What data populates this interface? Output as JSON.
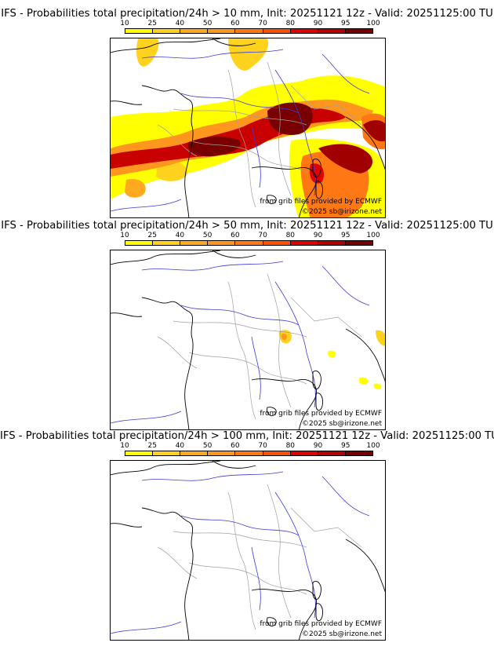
{
  "colorbar": {
    "ticks": [
      "10",
      "25",
      "40",
      "50",
      "60",
      "70",
      "80",
      "90",
      "95",
      "100"
    ],
    "colors": [
      "#ffff00",
      "#ffd21e",
      "#ffaa1e",
      "#ff961e",
      "#ff7814",
      "#ff5000",
      "#e10000",
      "#b40000",
      "#780000"
    ]
  },
  "panels": [
    {
      "title": "IFS - Probabilities total precipitation/24h > 10 mm, Init: 20251121 12z - Valid: 20251125:00 TU",
      "source": "from grib files provided by ECMWF",
      "copyright": "©2025 sb@irizone.net"
    },
    {
      "title": "IFS - Probabilities total precipitation/24h > 50 mm, Init: 20251121 12z - Valid: 20251125:00 TU",
      "source": "from grib files provided by ECMWF",
      "copyright": "©2025 sb@irizone.net"
    },
    {
      "title": "IFS - Probabilities total precipitation/24h > 100 mm, Init: 20251121 12z - Valid: 20251125:00 TU",
      "source": "from grib files provided by ECMWF",
      "copyright": "©2025 sb@irizone.net"
    }
  ],
  "colors": {
    "coast": "#000000",
    "rivers": "#3a3ad8",
    "borders": "#a0a0a0"
  }
}
